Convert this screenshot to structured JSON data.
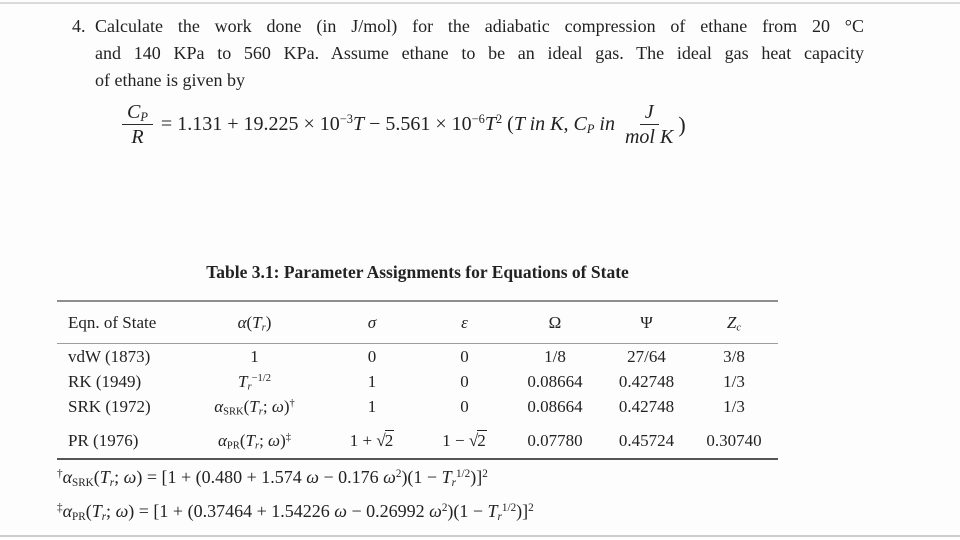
{
  "problem": {
    "number": "4.",
    "lines": [
      "Calculate the work done (in J/mol) for the adiabatic compression of ethane from 20 °C",
      "and 140 KPa to 560 KPa. Assume ethane to be an ideal gas. The ideal gas heat capacity",
      "of ethane is given by"
    ]
  },
  "equation": {
    "lhs_num": "*{C}_{*{P}}",
    "lhs_den": "*{R}",
    "body": "= 1.131 + 19.225 × 10^{−3}*{T} − 5.561 × 10^{−6}*{T}^{2} (*{T in K}, *{C}_{*{P}} *{in}",
    "unit_num": "*{J}",
    "unit_den": "*{mol K}",
    "close": ")"
  },
  "table": {
    "title": "Table 3.1: Parameter Assignments for Equations of State",
    "headers": [
      "Eqn. of State",
      "*{α}(*{T}_{*{r}})",
      "*{σ}",
      "*{ε}",
      "Ω",
      "Ψ",
      "*{Z}_{*{c}}"
    ],
    "rows": [
      [
        "vdW (1873)",
        "1",
        "0",
        "0",
        "1/8",
        "27/64",
        "3/8"
      ],
      [
        "RK (1949)",
        "*{T}_{*{r}}^{−1/2}",
        "1",
        "0",
        "0.08664",
        "0.42748",
        "1/3"
      ],
      [
        "SRK (1972)",
        "*{α}_{SRK}(*{T}_{*{r}}; *{ω})^{†}",
        "1",
        "0",
        "0.08664",
        "0.42748",
        "1/3"
      ],
      [
        "PR (1976)",
        "*{α}_{PR}(*{T}_{*{r}}; *{ω})^{‡}",
        "1 + √~{2}",
        "1 − √~{2}",
        "0.07780",
        "0.45724",
        "0.30740"
      ]
    ],
    "footnotes": [
      "^{†}*{α}_{SRK}(*{T}_{*{r}}; *{ω}) = [1 + (0.480 + 1.574 *{ω} − 0.176 *{ω}^{2})(1 − *{T}_{*{r}}^{1/2})]^{2}",
      "^{‡}*{α}_{PR}(*{T}_{*{r}}; *{ω}) = [1 + (0.37464 + 1.54226 *{ω} − 0.26992 *{ω}^{2})(1 − *{T}_{*{r}}^{1/2})]^{2}"
    ]
  }
}
